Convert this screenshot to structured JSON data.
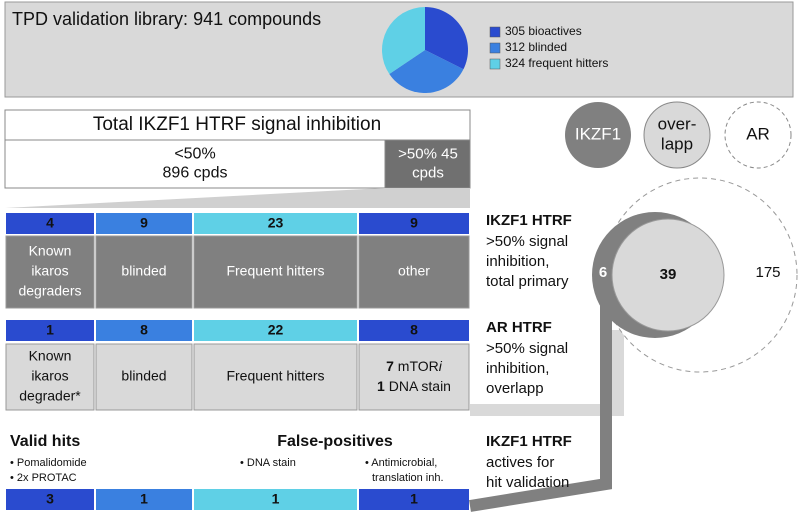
{
  "header": {
    "title": "TPD validation library: 941 compounds",
    "pie": [
      {
        "value": 305,
        "label": "305 bioactives",
        "color": "#2a4bcf"
      },
      {
        "value": 312,
        "label": "312 blinded",
        "color": "#3a80e0"
      },
      {
        "value": 324,
        "label": "324 frequent hitters",
        "color": "#5fd0e6"
      }
    ]
  },
  "screen": {
    "title": "Total IKZF1 HTRF signal inhibition",
    "below": [
      "<50%",
      "896 cpds"
    ],
    "above": [
      ">50% 45",
      "cpds"
    ]
  },
  "circles": [
    [
      "IKZF1"
    ],
    [
      "over-",
      "lapp"
    ],
    [
      "AR"
    ]
  ],
  "rows": [
    {
      "counts": [
        4,
        9,
        23,
        9
      ],
      "cells": [
        [
          "Known",
          "ikaros",
          "degraders"
        ],
        [
          "blinded"
        ],
        [
          "Frequent hitters"
        ],
        [
          "other"
        ]
      ],
      "label": {
        "title": "IKZF1 HTRF",
        "lines": [
          ">50% signal",
          "inhibition,",
          "total primary"
        ]
      }
    },
    {
      "counts": [
        1,
        8,
        22,
        8
      ],
      "cells": [
        [
          "Known",
          "ikaros",
          "degrader*"
        ],
        [
          "blinded"
        ],
        [
          "Frequent hitters"
        ],
        [
          {
            "count": 7,
            "text": "mTOR",
            "italic": "i"
          },
          {
            "count": 1,
            "text": "DNA stain"
          }
        ]
      ],
      "label": {
        "title": "AR HTRF",
        "lines": [
          ">50% signal",
          "inhibition,",
          "overlapp"
        ]
      }
    }
  ],
  "venn": {
    "ikzf1_only": 6,
    "overlap": 39,
    "ar_only": 175
  },
  "bottom": {
    "valid_title": "Valid hits",
    "valid_notes": [
      "• Pomalidomide",
      "• 2x PROTAC"
    ],
    "false_title": "False-positives",
    "false_notes": [
      [
        "• DNA stain"
      ],
      [
        "• Antimicrobial,",
        "translation inh."
      ]
    ],
    "counts": [
      3,
      1,
      1,
      1
    ],
    "label": {
      "title": "IKZF1 HTRF",
      "lines": [
        "actives for",
        "hit validation"
      ]
    }
  }
}
